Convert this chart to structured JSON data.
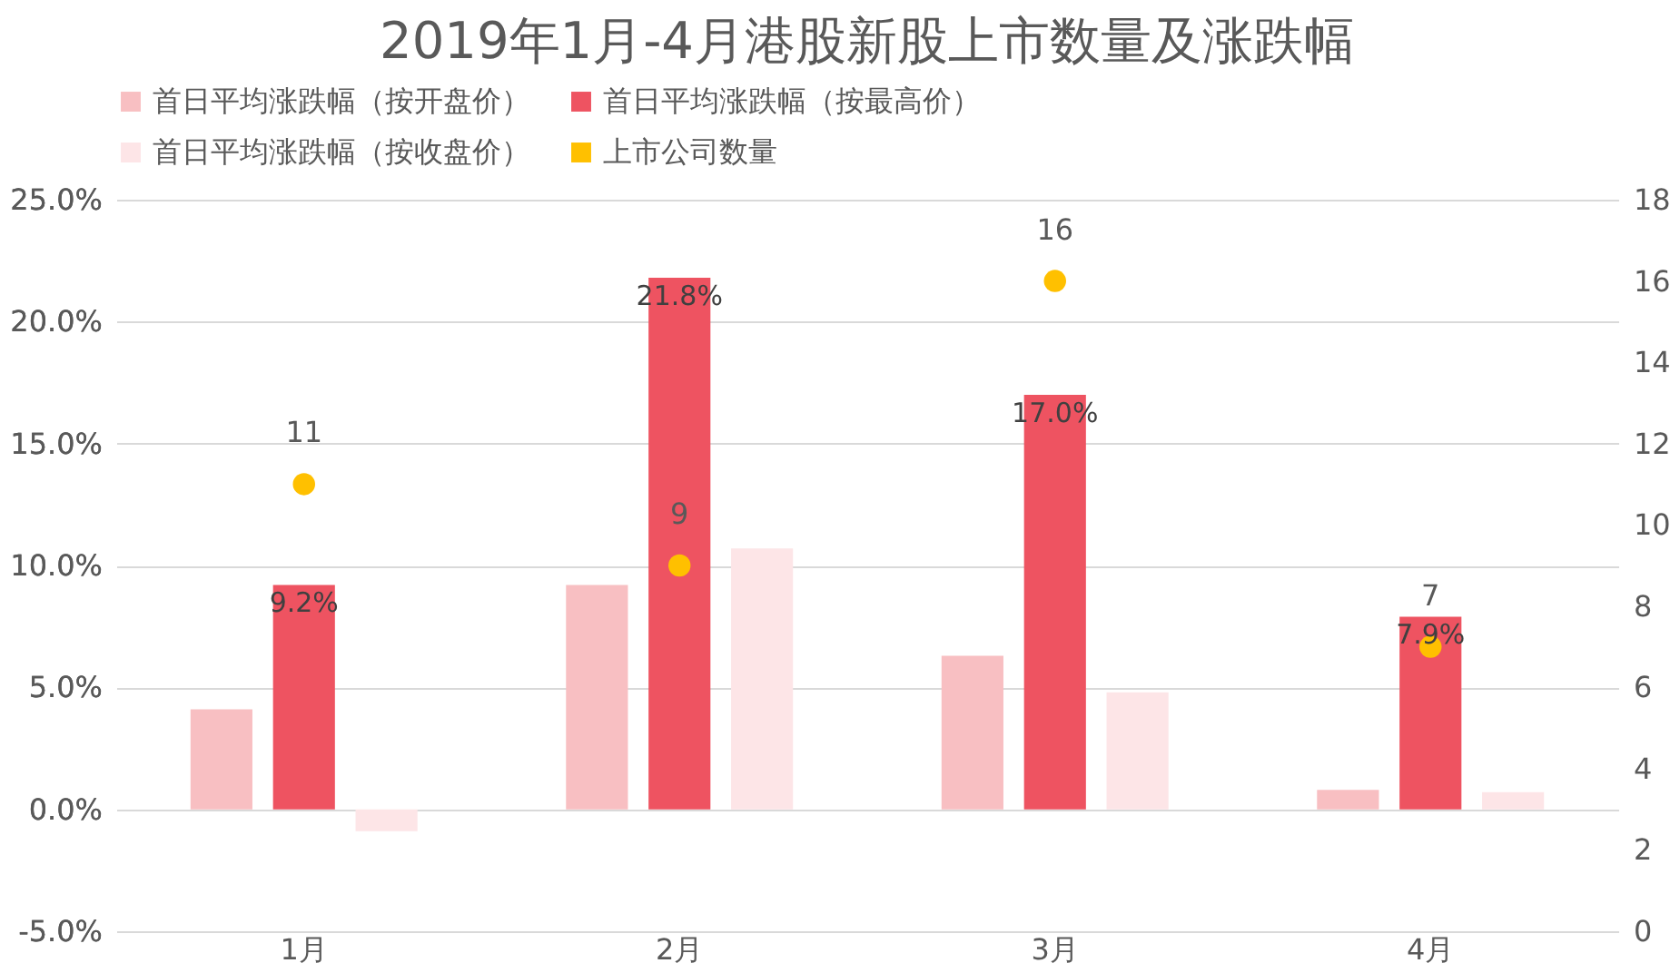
{
  "chart_data": {
    "type": "bar",
    "title": "2019年1月-4月港股新股上市数量及涨跌幅",
    "categories": [
      "1月",
      "2月",
      "3月",
      "4月"
    ],
    "series": [
      {
        "name": "首日平均涨跌幅（按开盘价）",
        "color": "#f8bfc2",
        "values": [
          4.1,
          9.2,
          6.3,
          0.8
        ]
      },
      {
        "name": "首日平均涨跌幅（按最高价）",
        "color": "#ee5361",
        "values": [
          9.2,
          21.8,
          17.0,
          7.9
        ],
        "value_labels": [
          "9.2%",
          "21.8%",
          "17.0%",
          "7.9%"
        ]
      },
      {
        "name": "首日平均涨跌幅（按收盘价）",
        "color": "#fde5e7",
        "values": [
          -0.9,
          10.7,
          4.8,
          0.7
        ]
      },
      {
        "name": "上市公司数量",
        "type": "scatter",
        "axis": "y2",
        "color": "#ffc000",
        "values": [
          11,
          9,
          16,
          7
        ],
        "value_labels": [
          "11",
          "9",
          "16",
          "7"
        ]
      }
    ],
    "ylim": [
      -5,
      25
    ],
    "yticks": [
      {
        "value": -5,
        "label": "-5.0%"
      },
      {
        "value": 0,
        "label": "0.0%"
      },
      {
        "value": 5,
        "label": "5.0%"
      },
      {
        "value": 10,
        "label": "10.0%"
      },
      {
        "value": 15,
        "label": "15.0%"
      },
      {
        "value": 20,
        "label": "20.0%"
      },
      {
        "value": 25,
        "label": "25.0%"
      }
    ],
    "y2lim": [
      0,
      18
    ],
    "y2ticks": [
      0,
      2,
      4,
      6,
      8,
      10,
      12,
      14,
      16,
      18
    ],
    "grid": "y",
    "legend": "top",
    "marker": "circle"
  }
}
